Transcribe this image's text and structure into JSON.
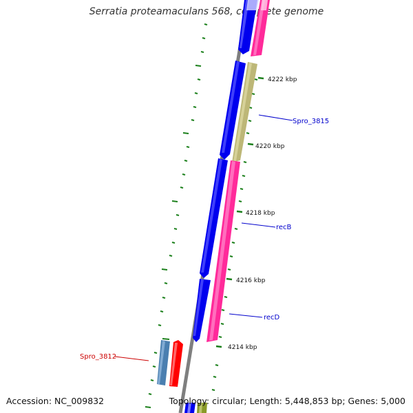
{
  "title": "Serratia proteamaculans 568, complete genome",
  "footer": {
    "accession": "Accession: NC_009832",
    "topology": "Topology: circular; Length: 5,448,853 bp; Genes: 5,000"
  },
  "scale_labels": [
    "4222 kbp",
    "4220 kbp",
    "4218 kbp",
    "4216 kbp",
    "4214 kbp"
  ],
  "gene_labels": [
    {
      "name": "Spro_3815",
      "color": "#0000cc"
    },
    {
      "name": "recB",
      "color": "#0000cc"
    },
    {
      "name": "recD",
      "color": "#0000cc"
    },
    {
      "name": "Spro_3812",
      "color": "#cc0000"
    }
  ],
  "colors": {
    "backbone": "#7f7f7f",
    "forward_strand_gene": "#0000ee",
    "reverse_strand_gene": "#ff2a9a",
    "pseudo_gene": "#bdb777",
    "tick": "#1a7f1a",
    "steelblue_gene": "#4a7fb0",
    "red_gene": "#ff0000"
  }
}
